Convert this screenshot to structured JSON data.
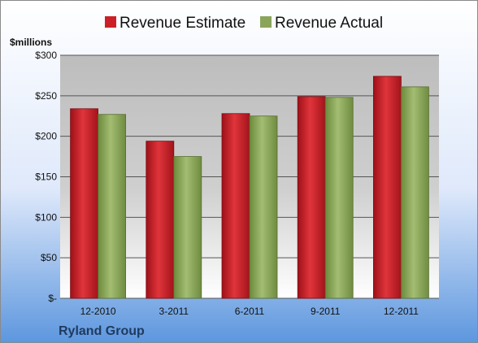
{
  "colors": {
    "estimate": "#cc2027",
    "actual": "#8aa55a"
  },
  "company": "Ryland Group",
  "y_unit_label": "$millions",
  "legend": [
    {
      "label": "Revenue Estimate",
      "color": "#cc2027"
    },
    {
      "label": "Revenue Actual",
      "color": "#8aa55a"
    }
  ],
  "chart_data": {
    "type": "bar",
    "categories": [
      "12-2010",
      "3-2011",
      "6-2011",
      "9-2011",
      "12-2011"
    ],
    "series": [
      {
        "name": "Revenue Estimate",
        "values": [
          234,
          194,
          228,
          249,
          274
        ]
      },
      {
        "name": "Revenue Actual",
        "values": [
          227,
          175,
          225,
          248,
          261
        ]
      }
    ],
    "ylim": [
      0,
      300
    ],
    "yticks": [
      0,
      50,
      100,
      150,
      200,
      250,
      300
    ],
    "ytick_labels": [
      "$-",
      "$50",
      "$100",
      "$150",
      "$200",
      "$250",
      "$300"
    ],
    "grid": true,
    "legend_position": "top"
  }
}
